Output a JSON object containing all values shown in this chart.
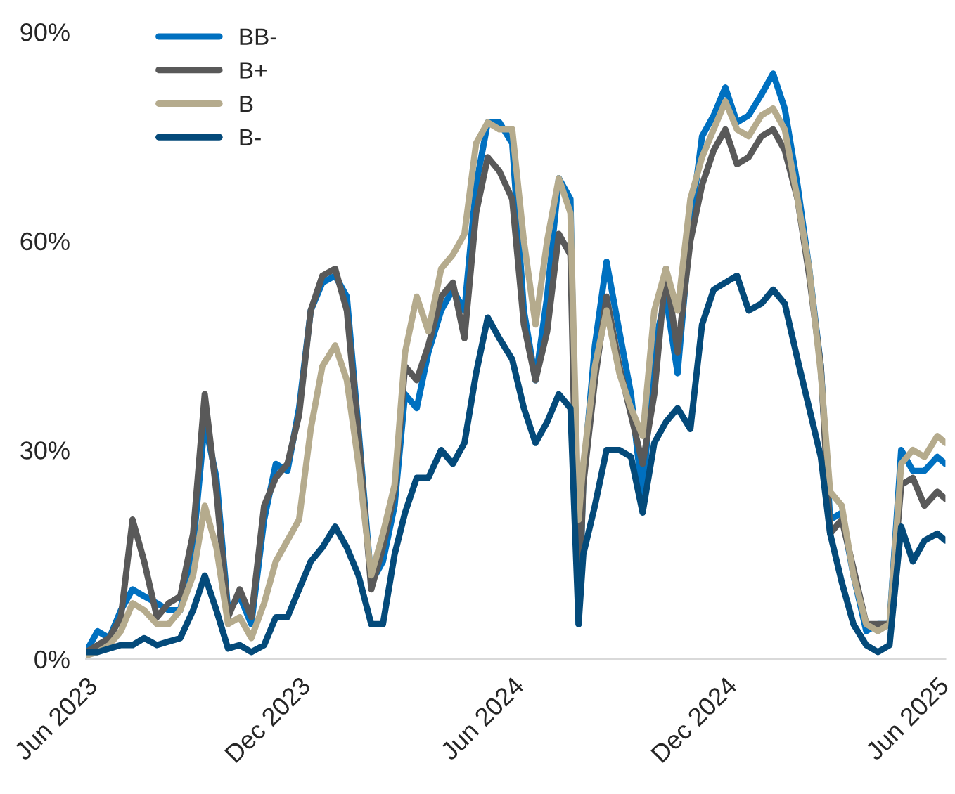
{
  "chart_data": {
    "type": "line",
    "legend": "top left",
    "grid": false,
    "line_style": "solid",
    "marker": "none",
    "x": [
      "2023-06-01",
      "2023-06-11",
      "2023-06-21",
      "2023-07-01",
      "2023-07-11",
      "2023-07-21",
      "2023-08-01",
      "2023-08-11",
      "2023-08-21",
      "2023-09-01",
      "2023-09-11",
      "2023-09-21",
      "2023-10-01",
      "2023-10-11",
      "2023-10-21",
      "2023-11-01",
      "2023-11-11",
      "2023-11-21",
      "2023-12-01",
      "2023-12-11",
      "2023-12-21",
      "2024-01-01",
      "2024-01-11",
      "2024-01-21",
      "2024-02-01",
      "2024-02-11",
      "2024-02-21",
      "2024-03-01",
      "2024-03-11",
      "2024-03-21",
      "2024-04-01",
      "2024-04-11",
      "2024-04-21",
      "2024-05-01",
      "2024-05-11",
      "2024-05-21",
      "2024-06-01",
      "2024-06-11",
      "2024-06-21",
      "2024-07-01",
      "2024-07-11",
      "2024-07-21",
      "2024-07-28",
      "2024-08-01",
      "2024-08-11",
      "2024-08-21",
      "2024-09-01",
      "2024-09-11",
      "2024-09-21",
      "2024-10-01",
      "2024-10-11",
      "2024-10-21",
      "2024-11-01",
      "2024-11-11",
      "2024-11-21",
      "2024-12-01",
      "2024-12-11",
      "2024-12-21",
      "2025-01-01",
      "2025-01-11",
      "2025-01-21",
      "2025-02-01",
      "2025-02-11",
      "2025-02-21",
      "2025-03-01",
      "2025-03-11",
      "2025-03-21",
      "2025-04-01",
      "2025-04-11",
      "2025-04-21",
      "2025-05-01",
      "2025-05-11",
      "2025-05-21",
      "2025-06-01",
      "2025-06-08"
    ],
    "xlim": [
      "2023-06-01",
      "2025-06-08"
    ],
    "xticks": [
      {
        "value": "2023-06-01",
        "label": "Jun 2023"
      },
      {
        "value": "2023-12-01",
        "label": "Dec 2023"
      },
      {
        "value": "2024-06-01",
        "label": "Jun 2024"
      },
      {
        "value": "2024-12-01",
        "label": "Dec 2024"
      },
      {
        "value": "2025-06-01",
        "label": "Jun 2025"
      }
    ],
    "ylim": [
      0,
      90
    ],
    "yticks": [
      {
        "value": 0,
        "label": "0%"
      },
      {
        "value": 30,
        "label": "30%"
      },
      {
        "value": 60,
        "label": "60%"
      },
      {
        "value": 90,
        "label": "90%"
      }
    ],
    "series": [
      {
        "name": "BB-",
        "color": "#0070c0",
        "values": [
          1,
          4,
          3,
          7,
          10,
          9,
          8,
          7,
          7,
          16,
          34,
          26,
          7,
          9,
          5,
          20,
          28,
          27,
          36,
          50,
          54,
          55,
          52,
          33,
          11,
          14,
          22,
          38,
          36,
          44,
          50,
          53,
          50,
          68,
          77,
          77,
          74,
          50,
          40,
          52,
          69,
          66,
          5,
          26,
          45,
          57,
          47,
          38,
          23,
          45,
          52,
          41,
          62,
          75,
          78,
          82,
          77,
          78,
          81,
          84,
          79,
          68,
          56,
          42,
          20,
          21,
          12,
          4,
          5,
          5,
          30,
          27,
          27,
          29,
          28
        ]
      },
      {
        "name": "B+",
        "color": "#595959",
        "values": [
          1,
          2,
          3,
          6,
          20,
          14,
          6,
          8,
          9,
          18,
          38,
          24,
          6,
          10,
          6,
          22,
          26,
          28,
          35,
          50,
          55,
          56,
          50,
          32,
          10,
          16,
          24,
          42,
          40,
          45,
          52,
          54,
          46,
          64,
          72,
          70,
          66,
          48,
          40,
          47,
          61,
          58,
          6,
          25,
          40,
          52,
          42,
          35,
          28,
          38,
          56,
          44,
          60,
          68,
          73,
          76,
          71,
          72,
          75,
          76,
          73,
          66,
          55,
          42,
          18,
          20,
          13,
          5,
          5,
          5,
          25,
          26,
          22,
          24,
          23
        ]
      },
      {
        "name": "B",
        "color": "#b5ab8d",
        "values": [
          0.5,
          1,
          2,
          4,
          8,
          7,
          5,
          5,
          7,
          12,
          22,
          16,
          5,
          6,
          3,
          8,
          14,
          17,
          20,
          33,
          42,
          45,
          40,
          28,
          12,
          18,
          25,
          44,
          52,
          47,
          56,
          58,
          61,
          74,
          77,
          76,
          76,
          60,
          48,
          60,
          69,
          64,
          20,
          28,
          42,
          50,
          41,
          36,
          32,
          50,
          56,
          50,
          66,
          72,
          76,
          80,
          76,
          75,
          78,
          79,
          76,
          66,
          56,
          41,
          24,
          22,
          12,
          5,
          4,
          5,
          28,
          30,
          29,
          32,
          31
        ]
      },
      {
        "name": "B-",
        "color": "#044a7a",
        "values": [
          1,
          1,
          1.5,
          2,
          2,
          3,
          2,
          2.5,
          3,
          7,
          12,
          7,
          1.5,
          2,
          1,
          2,
          6,
          6,
          10,
          14,
          16,
          19,
          16,
          12,
          5,
          5,
          15,
          21,
          26,
          26,
          30,
          28,
          31,
          41,
          49,
          46,
          43,
          36,
          31,
          34,
          38,
          36,
          5,
          15,
          22,
          30,
          30,
          29,
          21,
          31,
          34,
          36,
          33,
          48,
          53,
          54,
          55,
          50,
          51,
          53,
          51,
          43,
          36,
          29,
          18,
          11,
          5,
          2,
          1,
          2,
          19,
          14,
          17,
          18,
          17
        ]
      }
    ]
  }
}
